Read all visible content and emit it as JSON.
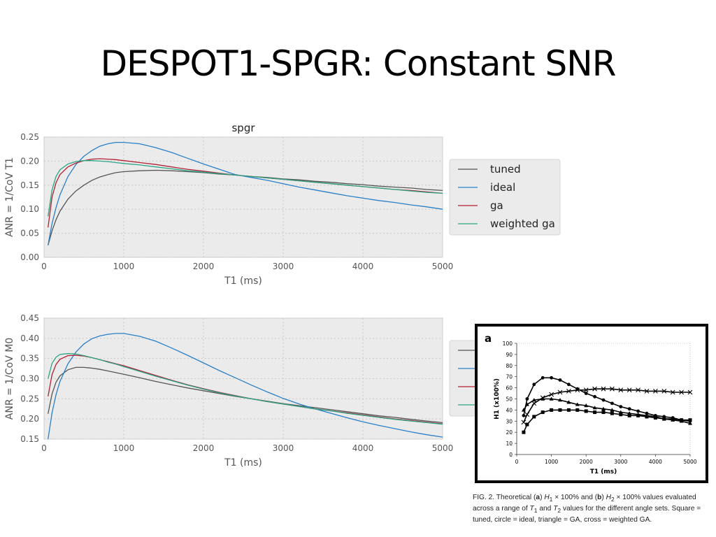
{
  "slide": {
    "title": "DESPOT1-SPGR: Constant SNR"
  },
  "colors": {
    "tuned": "#555555",
    "ideal": "#2a7fc7",
    "ga": "#b22034",
    "weighted_ga": "#2aa585",
    "plot_bg": "#ebebeb"
  },
  "chart_data": [
    {
      "type": "line",
      "title": "spgr",
      "xlabel": "T1 (ms)",
      "ylabel": "ANR = 1/CoV T1",
      "xlim": [
        0,
        5000
      ],
      "ylim": [
        0,
        0.25
      ],
      "xticks": [
        "0",
        "1000",
        "2000",
        "3000",
        "4000",
        "5000"
      ],
      "yticks": [
        "0.00",
        "0.05",
        "0.10",
        "0.15",
        "0.20",
        "0.25"
      ],
      "grid": true,
      "legend": "right",
      "x": [
        50,
        100,
        150,
        200,
        300,
        400,
        500,
        600,
        700,
        800,
        900,
        1000,
        1200,
        1400,
        1600,
        1800,
        2000,
        2200,
        2400,
        2600,
        2800,
        3000,
        3200,
        3400,
        3600,
        3800,
        4000,
        4200,
        4400,
        4600,
        4800,
        5000
      ],
      "series": [
        {
          "name": "tuned",
          "color_key": "tuned",
          "values": [
            0.025,
            0.055,
            0.078,
            0.096,
            0.121,
            0.138,
            0.15,
            0.16,
            0.167,
            0.172,
            0.176,
            0.178,
            0.18,
            0.181,
            0.18,
            0.178,
            0.176,
            0.173,
            0.171,
            0.168,
            0.166,
            0.163,
            0.161,
            0.158,
            0.156,
            0.153,
            0.151,
            0.148,
            0.146,
            0.144,
            0.141,
            0.139
          ]
        },
        {
          "name": "ideal",
          "color_key": "ideal",
          "values": [
            0.025,
            0.07,
            0.103,
            0.13,
            0.168,
            0.193,
            0.21,
            0.222,
            0.231,
            0.236,
            0.239,
            0.239,
            0.236,
            0.228,
            0.218,
            0.206,
            0.194,
            0.183,
            0.172,
            0.166,
            0.16,
            0.153,
            0.146,
            0.14,
            0.134,
            0.128,
            0.123,
            0.118,
            0.114,
            0.109,
            0.105,
            0.1
          ]
        },
        {
          "name": "ga",
          "color_key": "ga",
          "values": [
            0.062,
            0.125,
            0.155,
            0.172,
            0.188,
            0.196,
            0.201,
            0.204,
            0.205,
            0.204,
            0.203,
            0.201,
            0.197,
            0.193,
            0.188,
            0.183,
            0.179,
            0.175,
            0.171,
            0.168,
            0.165,
            0.162,
            0.159,
            0.156,
            0.153,
            0.15,
            0.147,
            0.144,
            0.141,
            0.139,
            0.136,
            0.133
          ]
        },
        {
          "name": "weighted ga",
          "color_key": "weighted_ga",
          "values": [
            0.085,
            0.14,
            0.168,
            0.182,
            0.194,
            0.199,
            0.201,
            0.201,
            0.2,
            0.199,
            0.197,
            0.195,
            0.192,
            0.188,
            0.184,
            0.18,
            0.177,
            0.174,
            0.171,
            0.168,
            0.165,
            0.162,
            0.159,
            0.156,
            0.153,
            0.15,
            0.147,
            0.144,
            0.141,
            0.138,
            0.135,
            0.133
          ]
        }
      ]
    },
    {
      "type": "line",
      "title": "",
      "xlabel": "T1 (ms)",
      "ylabel": "ANR = 1/CoV M0",
      "xlim": [
        0,
        5000
      ],
      "ylim": [
        0.15,
        0.45
      ],
      "xticks": [
        "0",
        "1000",
        "2000",
        "3000",
        "4000",
        "5000"
      ],
      "yticks": [
        "0.15",
        "0.20",
        "0.25",
        "0.30",
        "0.35",
        "0.40",
        "0.45"
      ],
      "grid": true,
      "legend": "right",
      "x": [
        50,
        100,
        150,
        200,
        300,
        400,
        500,
        600,
        700,
        800,
        900,
        1000,
        1200,
        1400,
        1600,
        1800,
        2000,
        2200,
        2400,
        2600,
        2800,
        3000,
        3200,
        3400,
        3600,
        3800,
        4000,
        4200,
        4400,
        4600,
        4800,
        5000
      ],
      "series": [
        {
          "name": "",
          "color_key": "tuned",
          "values": [
            0.213,
            0.262,
            0.291,
            0.307,
            0.322,
            0.328,
            0.328,
            0.326,
            0.323,
            0.319,
            0.315,
            0.311,
            0.302,
            0.293,
            0.285,
            0.277,
            0.27,
            0.263,
            0.256,
            0.25,
            0.244,
            0.238,
            0.233,
            0.228,
            0.223,
            0.218,
            0.213,
            0.208,
            0.204,
            0.199,
            0.195,
            0.191
          ]
        },
        {
          "name": "",
          "color_key": "ideal",
          "values": [
            0.15,
            0.215,
            0.26,
            0.293,
            0.337,
            0.366,
            0.386,
            0.399,
            0.406,
            0.41,
            0.412,
            0.412,
            0.405,
            0.393,
            0.376,
            0.358,
            0.339,
            0.32,
            0.302,
            0.284,
            0.267,
            0.251,
            0.237,
            0.225,
            0.214,
            0.203,
            0.193,
            0.184,
            0.176,
            0.168,
            0.161,
            0.155
          ]
        },
        {
          "name": "",
          "color_key": "ga",
          "values": [
            0.256,
            0.31,
            0.335,
            0.348,
            0.357,
            0.358,
            0.356,
            0.352,
            0.347,
            0.342,
            0.337,
            0.332,
            0.32,
            0.308,
            0.296,
            0.285,
            0.275,
            0.266,
            0.258,
            0.25,
            0.243,
            0.237,
            0.231,
            0.225,
            0.22,
            0.215,
            0.21,
            0.205,
            0.2,
            0.196,
            0.192,
            0.188
          ]
        },
        {
          "name": "",
          "color_key": "weighted_ga",
          "values": [
            0.3,
            0.338,
            0.353,
            0.36,
            0.362,
            0.361,
            0.357,
            0.352,
            0.347,
            0.341,
            0.336,
            0.33,
            0.318,
            0.306,
            0.295,
            0.284,
            0.274,
            0.265,
            0.257,
            0.25,
            0.243,
            0.237,
            0.231,
            0.225,
            0.22,
            0.214,
            0.209,
            0.204,
            0.199,
            0.195,
            0.191,
            0.187
          ]
        }
      ]
    },
    {
      "type": "line",
      "title": "",
      "panel_label": "a",
      "xlabel": "T1 (ms)",
      "ylabel": "H1 (x100%)",
      "xlim": [
        0,
        5000
      ],
      "ylim": [
        0,
        100
      ],
      "xticks": [
        "0",
        "1000",
        "2000",
        "3000",
        "4000",
        "5000"
      ],
      "yticks": [
        "0",
        "10",
        "20",
        "30",
        "40",
        "50",
        "60",
        "70",
        "80",
        "90",
        "100"
      ],
      "x": [
        200,
        300,
        500,
        750,
        1000,
        1250,
        1500,
        1750,
        2000,
        2250,
        2500,
        2750,
        3000,
        3250,
        3500,
        3750,
        4000,
        4250,
        4500,
        4750,
        5000
      ],
      "series": [
        {
          "name": "tuned",
          "marker": "square",
          "values": [
            20,
            27,
            34,
            38,
            40,
            40,
            40,
            40,
            39,
            38,
            38,
            37,
            36,
            35,
            35,
            34,
            33,
            32,
            32,
            31,
            31
          ]
        },
        {
          "name": "ideal",
          "marker": "circle",
          "values": [
            35,
            50,
            63,
            69,
            69,
            67,
            63,
            59,
            55,
            52,
            49,
            46,
            43,
            41,
            39,
            37,
            35,
            34,
            33,
            31,
            30
          ]
        },
        {
          "name": "GA",
          "marker": "triangle",
          "values": [
            40,
            45,
            49,
            50,
            50,
            49,
            47,
            45,
            44,
            42,
            41,
            40,
            38,
            37,
            36,
            35,
            34,
            32,
            31,
            30,
            28
          ]
        },
        {
          "name": "weighted GA",
          "marker": "cross",
          "values": [
            29,
            36,
            46,
            51,
            54,
            56,
            57,
            58,
            58,
            59,
            59,
            59,
            58,
            58,
            58,
            57,
            57,
            57,
            56,
            56,
            56
          ]
        }
      ]
    }
  ],
  "figure": {
    "caption": {
      "lead": "FIG. 2. Theoretical (",
      "a": "a",
      "h1": "H",
      "h1_sub": "1",
      "mid1": " × 100% and (",
      "b": "b",
      "h2": "H",
      "h2_sub": "2",
      "mid2": " × 100% values evaluated across a range of ",
      "t1": "T",
      "t1_sub": "1",
      "and": " and ",
      "t2": "T",
      "t2_sub": "2",
      "tail": " values for the different angle sets. Square = tuned, circle = ideal, triangle = GA, cross = weighted GA."
    }
  }
}
